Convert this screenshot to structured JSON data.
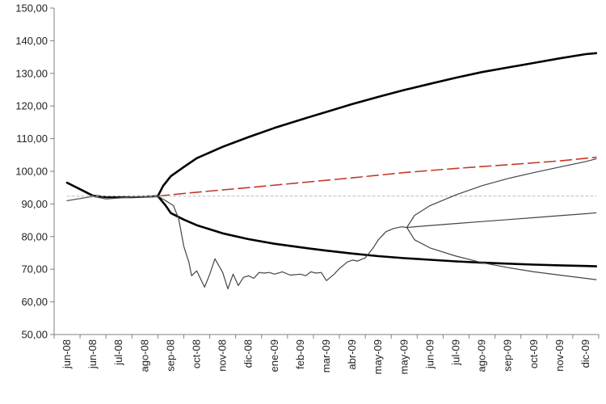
{
  "chart_data": {
    "type": "line",
    "title": "",
    "xlabel": "",
    "ylabel": "",
    "ylim": [
      50,
      150
    ],
    "yticks": [
      "50,00",
      "60,00",
      "70,00",
      "80,00",
      "90,00",
      "100,00",
      "110,00",
      "120,00",
      "130,00",
      "140,00",
      "150,00"
    ],
    "ytick_values": [
      50,
      60,
      70,
      80,
      90,
      100,
      110,
      120,
      130,
      140,
      150
    ],
    "x_categories": [
      "jun-08",
      "jun-08",
      "jul-08",
      "ago-08",
      "sep-08",
      "oct-08",
      "nov-08",
      "dic-08",
      "ene-09",
      "feb-09",
      "mar-09",
      "abr-09",
      "may-09",
      "may-09",
      "jun-09",
      "jul-09",
      "ago-09",
      "sep-09",
      "oct-09",
      "nov-09",
      "dic-09"
    ],
    "grid": false,
    "legend": "none",
    "series": [
      {
        "color": "#000000",
        "width": 2.6,
        "dash": "",
        "x": [
          0,
          0.5,
          1,
          1.5,
          2,
          2.5,
          3,
          3.5
        ],
        "y": [
          96.5,
          94.5,
          92.5,
          92.1,
          92.1,
          92.1,
          92.2,
          92.4
        ]
      },
      {
        "color": "#555555",
        "width": 1.2,
        "dash": "",
        "x": [
          0,
          1,
          1.5,
          2,
          2.5,
          3,
          3.5
        ],
        "y": [
          91,
          92.3,
          91.5,
          91.8,
          92.1,
          92.1,
          92.4
        ]
      },
      {
        "color": "#000000",
        "width": 2.6,
        "dash": "",
        "x": [
          3.5,
          3.7,
          4,
          4.5,
          5,
          6,
          7,
          8,
          9,
          10,
          11,
          12,
          13,
          14,
          15,
          16,
          17,
          18,
          19,
          20,
          20.4
        ],
        "y": [
          92.4,
          95.5,
          98.5,
          101.3,
          104.0,
          107.5,
          110.5,
          113.3,
          115.8,
          118.2,
          120.6,
          122.8,
          124.9,
          126.8,
          128.7,
          130.4,
          131.8,
          133.2,
          134.6,
          135.9,
          136.2
        ]
      },
      {
        "color": "#000000",
        "width": 2.6,
        "dash": "",
        "x": [
          3.5,
          3.8,
          4,
          4.5,
          5,
          6,
          7,
          8,
          9,
          10,
          11,
          12,
          13,
          14,
          15,
          16,
          17,
          18,
          19,
          20,
          20.4
        ],
        "y": [
          92.4,
          89.5,
          87.2,
          85.2,
          83.5,
          81.0,
          79.2,
          77.8,
          76.7,
          75.7,
          74.8,
          74.0,
          73.4,
          72.9,
          72.4,
          72.0,
          71.7,
          71.4,
          71.2,
          71.0,
          70.9
        ]
      },
      {
        "color": "#c0392b",
        "width": 1.6,
        "dash": "14,6",
        "x": [
          3.5,
          5,
          7,
          9,
          11,
          13,
          15,
          17,
          19,
          20.4
        ],
        "y": [
          92.4,
          93.6,
          95.0,
          96.5,
          98.0,
          99.6,
          100.9,
          102.0,
          103.2,
          104.3
        ]
      },
      {
        "color": "#bbbbbb",
        "width": 1,
        "dash": "3,3",
        "x": [
          0,
          20.4
        ],
        "y": [
          92.4,
          92.4
        ]
      },
      {
        "color": "#444444",
        "width": 1.2,
        "dash": "",
        "x": [
          3.5,
          3.8,
          4.1,
          4.3,
          4.5,
          4.7,
          4.8,
          5.0,
          5.3,
          5.5,
          5.7,
          6.0,
          6.2,
          6.4,
          6.6,
          6.8,
          7.0,
          7.2,
          7.4,
          7.6,
          7.8,
          8.0,
          8.3,
          8.6,
          9.0,
          9.2,
          9.4,
          9.6,
          9.8,
          10.0,
          10.3,
          10.5,
          10.8,
          11.0,
          11.2,
          11.5,
          11.8,
          12.0,
          12.3,
          12.6,
          12.9,
          13.1
        ],
        "y": [
          92.4,
          91,
          89.5,
          85.5,
          77,
          72,
          68,
          69.5,
          64.5,
          68.5,
          73.2,
          69,
          64,
          68.5,
          65,
          67.5,
          68,
          67.2,
          69,
          68.8,
          69,
          68.5,
          69.2,
          68.2,
          68.5,
          68.0,
          69.2,
          68.8,
          69.0,
          66.5,
          68.5,
          70.2,
          72.2,
          72.8,
          72.5,
          73.5,
          76.5,
          79.0,
          81.5,
          82.5,
          83.0,
          82.8
        ]
      },
      {
        "color": "#444444",
        "width": 1.2,
        "dash": "",
        "x": [
          13.1,
          13.4,
          14,
          15,
          16,
          17,
          18,
          19,
          20,
          20.4
        ],
        "y": [
          82.8,
          86.5,
          89.5,
          92.8,
          95.6,
          97.8,
          99.6,
          101.3,
          103.0,
          103.8
        ]
      },
      {
        "color": "#444444",
        "width": 1.2,
        "dash": "",
        "x": [
          13.1,
          14,
          15,
          16,
          17,
          18,
          19,
          20,
          20.4
        ],
        "y": [
          82.8,
          83.4,
          84.0,
          84.6,
          85.2,
          85.8,
          86.4,
          87.0,
          87.3
        ]
      },
      {
        "color": "#444444",
        "width": 1.2,
        "dash": "",
        "x": [
          13.1,
          13.4,
          14,
          15,
          16,
          17,
          18,
          19,
          20,
          20.4
        ],
        "y": [
          82.8,
          79.0,
          76.5,
          74.0,
          72.0,
          70.5,
          69.2,
          68.2,
          67.2,
          66.8
        ]
      }
    ]
  }
}
